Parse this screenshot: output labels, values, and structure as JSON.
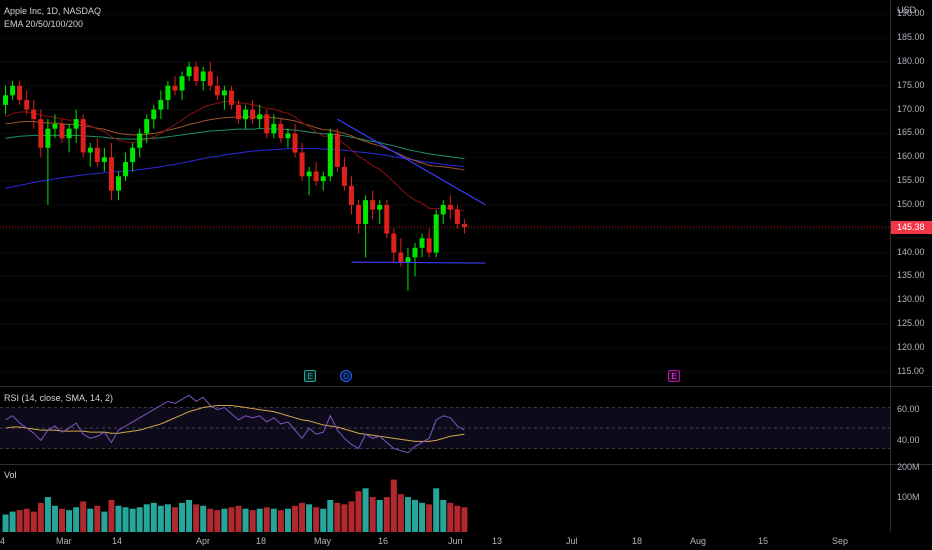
{
  "legend": {
    "symbol": "Apple Inc, 1D, NASDAQ",
    "indicator": "EMA 20/50/100/200"
  },
  "currency": "USD",
  "last_price": "145.38",
  "price_ticks": [
    "190.00",
    "185.00",
    "180.00",
    "175.00",
    "170.00",
    "165.00",
    "160.00",
    "155.00",
    "150.00",
    "145.00",
    "140.00",
    "135.00",
    "130.00",
    "125.00",
    "120.00",
    "115.00"
  ],
  "rsi": {
    "label": "RSI (14, close, SMA, 14, 2)",
    "ticks": [
      "60.00",
      "40.00"
    ]
  },
  "volume": {
    "label": "Vol",
    "ticks": [
      "200M",
      "100M"
    ]
  },
  "time_axis": [
    "4",
    "Mar",
    "14",
    "Apr",
    "18",
    "May",
    "16",
    "Jun",
    "13",
    "Jul",
    "18",
    "Aug",
    "15",
    "Sep"
  ],
  "events": [
    "E",
    "D",
    "E"
  ],
  "colors": {
    "up": "#00e600",
    "down": "#e0201c",
    "vol_up": "#26a69a",
    "vol_down": "#b2282f",
    "ema20": "#8b1010",
    "ema50": "#a0522d",
    "ema100": "#1e8f6a",
    "ema200": "#2a2ae0",
    "rsi": "#7e57c2",
    "rsi_ma": "#d4a74a",
    "trendline": "#3a3aff"
  },
  "chart_data": {
    "type": "candlestick",
    "symbol": "AAPL",
    "interval": "1D",
    "ylim": [
      112,
      193
    ],
    "ohlc": [
      [
        171,
        175,
        169,
        173
      ],
      [
        173,
        176,
        172,
        175
      ],
      [
        175,
        176,
        171,
        172
      ],
      [
        172,
        174,
        169,
        170
      ],
      [
        170,
        172,
        166,
        168
      ],
      [
        168,
        170,
        160,
        162
      ],
      [
        162,
        168,
        150,
        166
      ],
      [
        166,
        169,
        164,
        167
      ],
      [
        167,
        168,
        163,
        164
      ],
      [
        164,
        167,
        161,
        166
      ],
      [
        166,
        170,
        163,
        168
      ],
      [
        168,
        169,
        160,
        161
      ],
      [
        161,
        163,
        158,
        162
      ],
      [
        162,
        164,
        158,
        159
      ],
      [
        159,
        162,
        157,
        160
      ],
      [
        160,
        163,
        151,
        153
      ],
      [
        153,
        157,
        151,
        156
      ],
      [
        156,
        161,
        155,
        159
      ],
      [
        159,
        163,
        157,
        162
      ],
      [
        162,
        166,
        160,
        165
      ],
      [
        165,
        169,
        163,
        168
      ],
      [
        168,
        171,
        166,
        170
      ],
      [
        170,
        174,
        168,
        172
      ],
      [
        172,
        176,
        170,
        175
      ],
      [
        175,
        177,
        173,
        174
      ],
      [
        174,
        178,
        172,
        177
      ],
      [
        177,
        180,
        176,
        179
      ],
      [
        179,
        180,
        175,
        176
      ],
      [
        176,
        179,
        174,
        178
      ],
      [
        178,
        180,
        174,
        175
      ],
      [
        175,
        177,
        172,
        173
      ],
      [
        173,
        175,
        170,
        174
      ],
      [
        174,
        175,
        170,
        171
      ],
      [
        171,
        172,
        167,
        168
      ],
      [
        168,
        171,
        166,
        170
      ],
      [
        170,
        172,
        167,
        168
      ],
      [
        168,
        171,
        166,
        169
      ],
      [
        169,
        170,
        164,
        165
      ],
      [
        165,
        169,
        164,
        167
      ],
      [
        167,
        168,
        163,
        164
      ],
      [
        164,
        166,
        162,
        165
      ],
      [
        165,
        167,
        160,
        161
      ],
      [
        161,
        163,
        155,
        156
      ],
      [
        156,
        158,
        152,
        157
      ],
      [
        157,
        159,
        154,
        155
      ],
      [
        155,
        157,
        153,
        156
      ],
      [
        156,
        166,
        155,
        165
      ],
      [
        165,
        166,
        157,
        158
      ],
      [
        158,
        160,
        153,
        154
      ],
      [
        154,
        156,
        148,
        150
      ],
      [
        150,
        151,
        144,
        146
      ],
      [
        146,
        152,
        139,
        151
      ],
      [
        151,
        153,
        147,
        149
      ],
      [
        149,
        151,
        146,
        150
      ],
      [
        150,
        151,
        143,
        144
      ],
      [
        144,
        145,
        138,
        140
      ],
      [
        140,
        143,
        137,
        138
      ],
      [
        138,
        141,
        132,
        139
      ],
      [
        139,
        142,
        135,
        141
      ],
      [
        141,
        144,
        139,
        143
      ],
      [
        143,
        145,
        139,
        140
      ],
      [
        140,
        149,
        139,
        148
      ],
      [
        148,
        151,
        146,
        150
      ],
      [
        150,
        152,
        147,
        149
      ],
      [
        149,
        150,
        145,
        146
      ],
      [
        146,
        147,
        144,
        145.38
      ]
    ],
    "ema20": [
      168.5,
      169.2,
      169.5,
      169.5,
      169.4,
      168.8,
      168.6,
      168.4,
      168.0,
      167.8,
      167.8,
      167.2,
      166.6,
      165.9,
      165.4,
      164.3,
      163.6,
      163.2,
      163.1,
      163.3,
      163.7,
      164.3,
      165.0,
      166.0,
      166.8,
      167.8,
      168.9,
      169.6,
      170.5,
      171.0,
      171.3,
      171.7,
      171.7,
      171.4,
      171.3,
      171.0,
      170.7,
      170.3,
      170.1,
      169.6,
      169.2,
      168.5,
      167.3,
      166.4,
      165.3,
      164.4,
      164.4,
      163.8,
      162.8,
      161.6,
      160.2,
      159.3,
      158.2,
      157.5,
      156.2,
      154.8,
      153.3,
      152.0,
      151.0,
      150.3,
      149.3,
      149.2,
      149.3,
      149.3,
      149.0,
      148.7
    ],
    "ema50": [
      167.0,
      167.2,
      167.4,
      167.5,
      167.5,
      167.3,
      167.2,
      167.2,
      167.0,
      166.9,
      166.9,
      166.6,
      166.4,
      166.1,
      165.9,
      165.4,
      165.0,
      164.8,
      164.7,
      164.7,
      164.8,
      165.0,
      165.3,
      165.7,
      166.0,
      166.4,
      166.9,
      167.2,
      167.6,
      167.9,
      168.1,
      168.3,
      168.4,
      168.4,
      168.5,
      168.5,
      168.5,
      168.4,
      168.3,
      168.1,
      167.9,
      167.6,
      167.1,
      166.7,
      166.2,
      165.8,
      165.7,
      165.4,
      165.0,
      164.5,
      163.8,
      163.3,
      162.8,
      162.4,
      161.8,
      161.2,
      160.5,
      159.8,
      159.3,
      158.8,
      158.3,
      158.1,
      158.0,
      157.8,
      157.6,
      157.3
    ],
    "ema100": [
      164.0,
      164.2,
      164.4,
      164.5,
      164.6,
      164.6,
      164.6,
      164.6,
      164.6,
      164.6,
      164.6,
      164.5,
      164.4,
      164.3,
      164.2,
      164.0,
      163.9,
      163.8,
      163.8,
      163.8,
      163.9,
      164.0,
      164.1,
      164.3,
      164.5,
      164.7,
      164.9,
      165.1,
      165.3,
      165.5,
      165.6,
      165.7,
      165.8,
      165.9,
      165.9,
      165.9,
      166.0,
      166.0,
      165.9,
      165.9,
      165.8,
      165.7,
      165.5,
      165.3,
      165.1,
      164.9,
      164.9,
      164.7,
      164.5,
      164.2,
      163.9,
      163.6,
      163.3,
      163.1,
      162.7,
      162.4,
      162.0,
      161.6,
      161.3,
      161.0,
      160.7,
      160.5,
      160.3,
      160.1,
      159.9,
      159.7
    ],
    "ema200": [
      153.5,
      153.8,
      154.1,
      154.4,
      154.7,
      155.0,
      155.2,
      155.5,
      155.7,
      155.9,
      156.1,
      156.3,
      156.5,
      156.6,
      156.8,
      156.9,
      157.0,
      157.1,
      157.2,
      157.4,
      157.6,
      157.8,
      158.0,
      158.3,
      158.5,
      158.8,
      159.1,
      159.4,
      159.7,
      160.0,
      160.2,
      160.5,
      160.7,
      160.9,
      161.1,
      161.3,
      161.4,
      161.5,
      161.6,
      161.7,
      161.8,
      161.8,
      161.8,
      161.8,
      161.8,
      161.7,
      161.7,
      161.6,
      161.5,
      161.3,
      161.1,
      161.0,
      160.8,
      160.6,
      160.4,
      160.1,
      159.9,
      159.6,
      159.4,
      159.1,
      158.9,
      158.7,
      158.5,
      158.3,
      158.2,
      158.0
    ],
    "trendlines": [
      {
        "from": [
          47,
          168
        ],
        "to": [
          68,
          150
        ]
      },
      {
        "from": [
          49,
          138
        ],
        "to": [
          68,
          137.8
        ]
      }
    ],
    "rsi_ylim": [
      15,
      90
    ],
    "rsi": [
      58,
      62,
      55,
      50,
      45,
      38,
      48,
      52,
      46,
      50,
      55,
      44,
      40,
      42,
      46,
      36,
      48,
      52,
      56,
      60,
      64,
      68,
      72,
      76,
      74,
      78,
      82,
      76,
      80,
      72,
      68,
      70,
      64,
      58,
      62,
      60,
      62,
      56,
      60,
      54,
      56,
      48,
      40,
      50,
      44,
      46,
      62,
      48,
      40,
      34,
      30,
      44,
      40,
      42,
      36,
      30,
      28,
      26,
      32,
      36,
      40,
      58,
      62,
      60,
      52,
      48
    ],
    "rsi_ma": [
      50,
      51,
      51,
      50,
      49,
      48,
      48,
      48,
      47,
      47,
      47,
      47,
      46,
      46,
      46,
      45,
      45,
      46,
      47,
      48,
      50,
      52,
      54,
      57,
      60,
      63,
      66,
      68,
      70,
      71,
      72,
      72,
      72,
      71,
      70,
      69,
      68,
      67,
      66,
      64,
      62,
      60,
      58,
      57,
      55,
      53,
      52,
      51,
      49,
      47,
      45,
      44,
      43,
      42,
      41,
      40,
      39,
      38,
      37,
      37,
      37,
      38,
      40,
      42,
      43,
      44
    ],
    "volume_ylim": [
      0,
      230
    ],
    "volume": [
      60,
      70,
      75,
      80,
      70,
      100,
      120,
      90,
      80,
      75,
      85,
      105,
      80,
      90,
      70,
      110,
      90,
      85,
      80,
      85,
      95,
      100,
      90,
      95,
      85,
      100,
      110,
      95,
      90,
      80,
      75,
      80,
      85,
      90,
      80,
      75,
      80,
      85,
      80,
      75,
      80,
      90,
      100,
      95,
      85,
      80,
      110,
      100,
      95,
      105,
      140,
      150,
      120,
      110,
      120,
      180,
      130,
      120,
      110,
      100,
      95,
      150,
      110,
      100,
      90,
      85
    ]
  }
}
